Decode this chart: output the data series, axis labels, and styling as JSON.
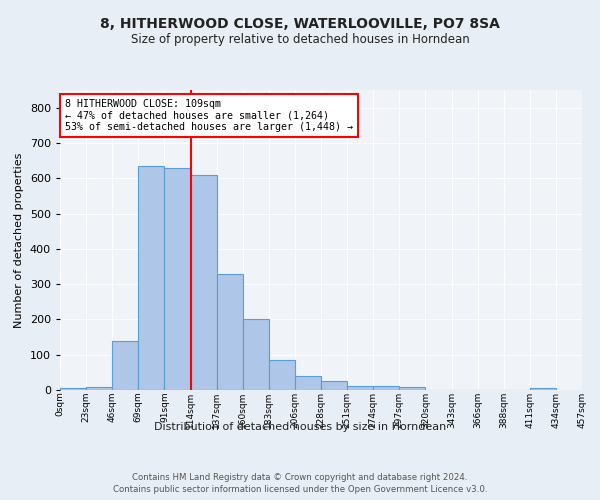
{
  "title": "8, HITHERWOOD CLOSE, WATERLOOVILLE, PO7 8SA",
  "subtitle": "Size of property relative to detached houses in Horndean",
  "xlabel_bottom": "Distribution of detached houses by size in Horndean",
  "ylabel": "Number of detached properties",
  "bar_values": [
    5,
    8,
    140,
    635,
    630,
    610,
    330,
    200,
    85,
    40,
    25,
    10,
    12,
    8,
    0,
    0,
    0,
    0,
    5
  ],
  "bin_labels": [
    "0sqm",
    "23sqm",
    "46sqm",
    "69sqm",
    "91sqm",
    "114sqm",
    "137sqm",
    "160sqm",
    "183sqm",
    "206sqm",
    "228sqm",
    "251sqm",
    "274sqm",
    "297sqm",
    "320sqm",
    "343sqm",
    "366sqm",
    "388sqm",
    "411sqm",
    "434sqm",
    "457sqm"
  ],
  "bar_color": "#aec6e8",
  "bar_edge_color": "#5a9fd4",
  "vline_x": 4.5,
  "vline_color": "red",
  "ylim": [
    0,
    850
  ],
  "yticks": [
    0,
    100,
    200,
    300,
    400,
    500,
    600,
    700,
    800
  ],
  "annotation_text": "8 HITHERWOOD CLOSE: 109sqm\n← 47% of detached houses are smaller (1,264)\n53% of semi-detached houses are larger (1,448) →",
  "annotation_box_color": "white",
  "annotation_box_edge": "red",
  "footer_line1": "Contains HM Land Registry data © Crown copyright and database right 2024.",
  "footer_line2": "Contains public sector information licensed under the Open Government Licence v3.0.",
  "bg_color": "#e8eef5",
  "plot_bg_color": "#f0f4f9",
  "n_bars": 19
}
